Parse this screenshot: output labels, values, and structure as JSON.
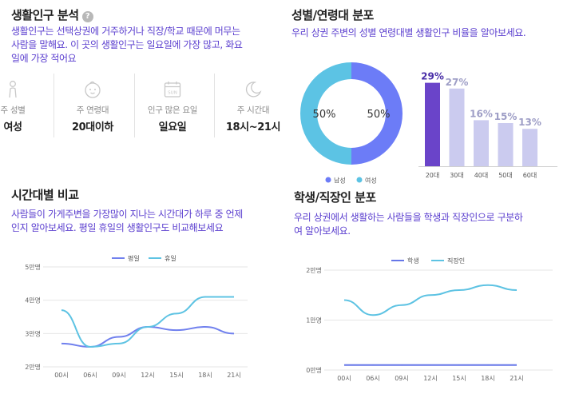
{
  "residents": {
    "title": "생활인구 분석",
    "help_icon": "?",
    "description": "생활인구는 선택상권에 거주하거나 직장/학교 때문에 머무는 사람을 말해요. 이 곳의 생활인구는 일요일에 가장 많고, 화요일에 가장 적어요",
    "desc_lines": [
      "생활인구는 선택상권에 거주하거나 직장/학교 때문에 머무는",
      "사람을 말해요. 이 곳의 생활인구는 일요일에 가장 많고, 화요",
      "일에 가장 적어요"
    ],
    "stats": [
      {
        "icon": "person-icon",
        "label": "주 성별",
        "value": "여성"
      },
      {
        "icon": "baby-face-icon",
        "label": "주 연령대",
        "value": "20대이하"
      },
      {
        "icon": "calendar-sun-icon",
        "label": "인구 많은 요일",
        "value": "일요일",
        "icon_text": "SUN"
      },
      {
        "icon": "moon-icon",
        "label": "주 시간대",
        "value": "18시~21시"
      }
    ]
  },
  "gender_age": {
    "title": "성별/연령대 분포",
    "description": "우리 상권 주변의 성별 연령대별 생활인구 비율을 알아보세요."
  },
  "time_compare": {
    "title": "시간대별 비교",
    "desc_lines": [
      "사람들이 가게주변을 가장많이 지나는 시간대가 하루 중 언제",
      "인지 알아보세요. 평일 휴일의 생활인구도 비교해보세요"
    ]
  },
  "student_worker": {
    "title": "학생/직장인 분포",
    "desc_lines": [
      "우리 상권에서 생활하는 사람들을 학생과 직장인으로 구분하",
      "여 알아보세요."
    ]
  },
  "colors": {
    "male": "#6c7cf7",
    "female": "#5cc3e4",
    "bar_highlight": "#6a44c9",
    "bar_normal": "#cbcbef",
    "weekday": "#7080ee",
    "holiday": "#5ec3e3",
    "student": "#6677e8",
    "worker": "#5ec3e3",
    "desc_text": "#5b3fcf",
    "grid": "#e6e6e6"
  },
  "chart_data": [
    {
      "type": "pie",
      "variant": "donut",
      "categories": [
        "남성",
        "여성"
      ],
      "values": [
        50,
        50
      ],
      "data_labels": [
        "50%",
        "50%"
      ],
      "legend": "bottom"
    },
    {
      "type": "bar",
      "categories": [
        "20대",
        "30대",
        "40대",
        "50대",
        "60대"
      ],
      "values": [
        29,
        27,
        16,
        15,
        13
      ],
      "data_labels": [
        "29%",
        "27%",
        "16%",
        "15%",
        "13%"
      ],
      "highlight_index": 0
    },
    {
      "type": "line",
      "x": [
        "00시",
        "06시",
        "09시",
        "12시",
        "15시",
        "18시",
        "21시"
      ],
      "series": [
        {
          "name": "평일",
          "values": [
            2.7,
            2.6,
            2.9,
            3.2,
            3.1,
            3.2,
            3.0
          ]
        },
        {
          "name": "휴일",
          "values": [
            3.7,
            2.6,
            2.7,
            3.2,
            3.6,
            4.1,
            4.1
          ]
        }
      ],
      "yticks": [
        "2만명",
        "3만명",
        "4만명",
        "5만명"
      ],
      "ylim": [
        2,
        5
      ],
      "legend": "top",
      "grid": true
    },
    {
      "type": "line",
      "x": [
        "00시",
        "06시",
        "09시",
        "12시",
        "15시",
        "18시",
        "21시"
      ],
      "series": [
        {
          "name": "학생",
          "values": [
            0.1,
            0.1,
            0.1,
            0.1,
            0.1,
            0.1,
            0.1
          ]
        },
        {
          "name": "직장인",
          "values": [
            1.4,
            1.1,
            1.3,
            1.5,
            1.6,
            1.7,
            1.6
          ]
        }
      ],
      "yticks": [
        "0만명",
        "1만명",
        "2만명"
      ],
      "ylim": [
        0,
        2
      ],
      "legend": "top",
      "grid": true
    }
  ]
}
